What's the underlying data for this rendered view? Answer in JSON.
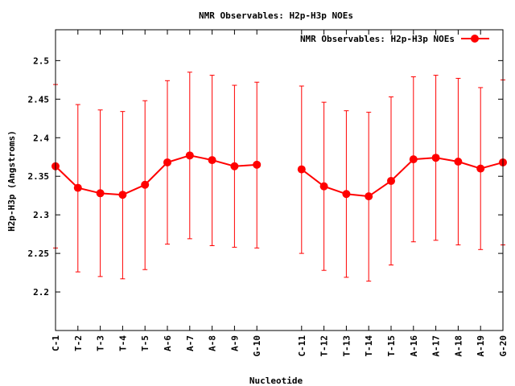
{
  "chart_data": {
    "type": "line",
    "title": "NMR Observables: H2p-H3p NOEs",
    "xlabel": "Nucleotide",
    "ylabel": "H2p-H3p (Angstroms)",
    "ylim": [
      2.15,
      2.54
    ],
    "yticks": [
      "2.2",
      "2.25",
      "2.3",
      "2.35",
      "2.4",
      "2.45",
      "2.5"
    ],
    "legend": {
      "label": "NMR Observables: H2p-H3p NOEs",
      "position": "top-right"
    },
    "grid": false,
    "color": "#ff0000",
    "categories": [
      "C-1",
      "T-2",
      "T-3",
      "T-4",
      "T-5",
      "A-6",
      "A-7",
      "A-8",
      "A-9",
      "G-10",
      "C-11",
      "T-12",
      "T-13",
      "T-14",
      "T-15",
      "A-16",
      "A-17",
      "A-18",
      "A-19",
      "G-20"
    ],
    "x_positions": [
      1,
      2,
      3,
      4,
      5,
      6,
      7,
      8,
      9,
      10,
      12,
      13,
      14,
      15,
      16,
      17,
      18,
      19,
      20,
      21
    ],
    "x_range": [
      1,
      21
    ],
    "segments": [
      [
        0,
        9
      ],
      [
        10,
        19
      ]
    ],
    "series": [
      {
        "values": [
          2.363,
          2.335,
          2.328,
          2.326,
          2.339,
          2.368,
          2.377,
          2.371,
          2.363,
          2.365,
          2.359,
          2.337,
          2.327,
          2.324,
          2.344,
          2.372,
          2.374,
          2.369,
          2.36,
          2.368
        ],
        "err_low": [
          2.257,
          2.226,
          2.22,
          2.217,
          2.229,
          2.262,
          2.269,
          2.26,
          2.258,
          2.257,
          2.25,
          2.228,
          2.219,
          2.214,
          2.235,
          2.265,
          2.267,
          2.261,
          2.255,
          2.261
        ],
        "err_high": [
          2.469,
          2.443,
          2.436,
          2.434,
          2.448,
          2.474,
          2.485,
          2.481,
          2.468,
          2.472,
          2.467,
          2.446,
          2.435,
          2.433,
          2.453,
          2.479,
          2.481,
          2.477,
          2.465,
          2.475
        ]
      }
    ]
  }
}
